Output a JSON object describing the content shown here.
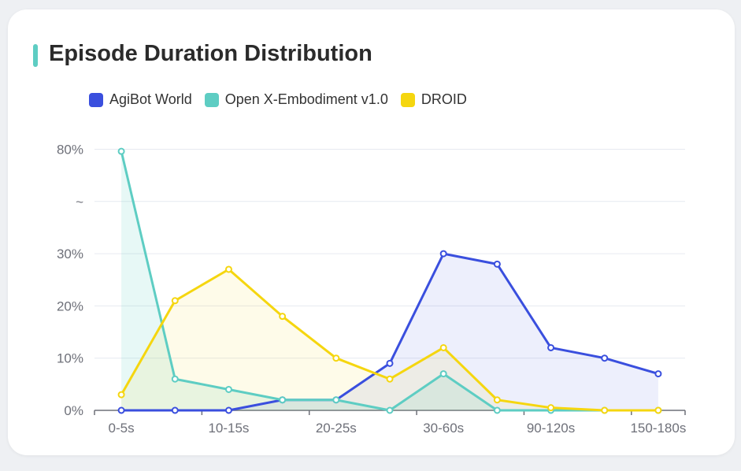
{
  "card": {
    "title": "Episode Duration Distribution",
    "accent_color": "#5ecdc3"
  },
  "chart_data": {
    "type": "line",
    "area_fill": true,
    "title": "Episode Duration Distribution",
    "categories": [
      "0-5s",
      "",
      "10-15s",
      "",
      "20-25s",
      "",
      "30-60s",
      "",
      "90-120s",
      "",
      "150-180s"
    ],
    "y_tick_labels": [
      "0%",
      "10%",
      "20%",
      "30%",
      "~",
      "80%"
    ],
    "y_axis_break": "between 30% and 80%",
    "grid": true,
    "legend_position": "top-left",
    "series": [
      {
        "name": "AgiBot World",
        "color": "#3a4fde",
        "values": [
          0,
          0,
          0,
          2,
          2,
          9,
          30,
          28,
          12,
          10,
          7
        ]
      },
      {
        "name": "Open X-Embodiment v1.0",
        "color": "#5ecdc3",
        "values": [
          79,
          6,
          4,
          2,
          2,
          0,
          7,
          0,
          0,
          0,
          0
        ]
      },
      {
        "name": "DROID",
        "color": "#f5d60f",
        "values": [
          3,
          21,
          27,
          18,
          10,
          6,
          12,
          2,
          0.5,
          0,
          0
        ]
      }
    ]
  }
}
